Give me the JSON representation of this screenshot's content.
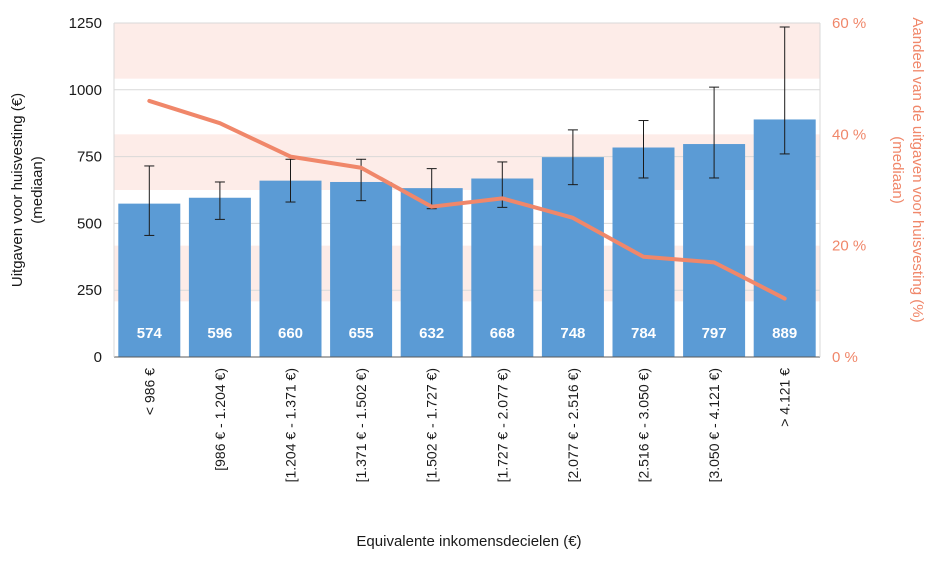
{
  "chart_data": {
    "type": "bar",
    "categories": [
      "< 986 €",
      "[986 € - 1.204 €)",
      "[1.204 € - 1.371 €)",
      "[1.371 € - 1.502 €)",
      "[1.502 € - 1.727 €)",
      "[1.727 € - 2.077 €)",
      "[2.077 € - 2.516 €)",
      "[2.516 € - 3.050 €)",
      "[3.050 € - 4.121 €)",
      "> 4.121 €"
    ],
    "series": [
      {
        "type": "bar",
        "axis": "left",
        "values": [
          574,
          596,
          660,
          655,
          632,
          668,
          748,
          784,
          797,
          889
        ],
        "labels": [
          "574",
          "596",
          "660",
          "655",
          "632",
          "668",
          "748",
          "784",
          "797",
          "889"
        ],
        "error_low": [
          455,
          515,
          580,
          585,
          555,
          560,
          645,
          670,
          670,
          760
        ],
        "error_high": [
          715,
          655,
          740,
          740,
          705,
          730,
          850,
          885,
          1010,
          1235
        ]
      },
      {
        "type": "line",
        "axis": "right",
        "values": [
          46,
          42,
          36,
          34,
          27,
          28.5,
          25,
          18,
          17,
          10.5
        ]
      }
    ],
    "xlabel": "Equivalente inkomensdecielen (€)",
    "ylabel": "Uitgaven voor huisvesting (€)\n(mediaan)",
    "y2label": "Aandeel van de uitgaven voor huisvesting (%)\n(mediaan)",
    "ylim": [
      0,
      1250
    ],
    "y2lim": [
      0,
      60
    ],
    "yticks": [
      0,
      250,
      500,
      750,
      1000,
      1250
    ],
    "y2ticks": [
      0,
      20,
      40,
      60
    ],
    "y2tick_labels": [
      "0 %",
      "20 %",
      "40 %",
      "60 %"
    ],
    "colors": {
      "bar": "#5b9bd5",
      "line": "#f0876a",
      "band": "#fdece8",
      "right_axis": "#f0876a"
    }
  }
}
